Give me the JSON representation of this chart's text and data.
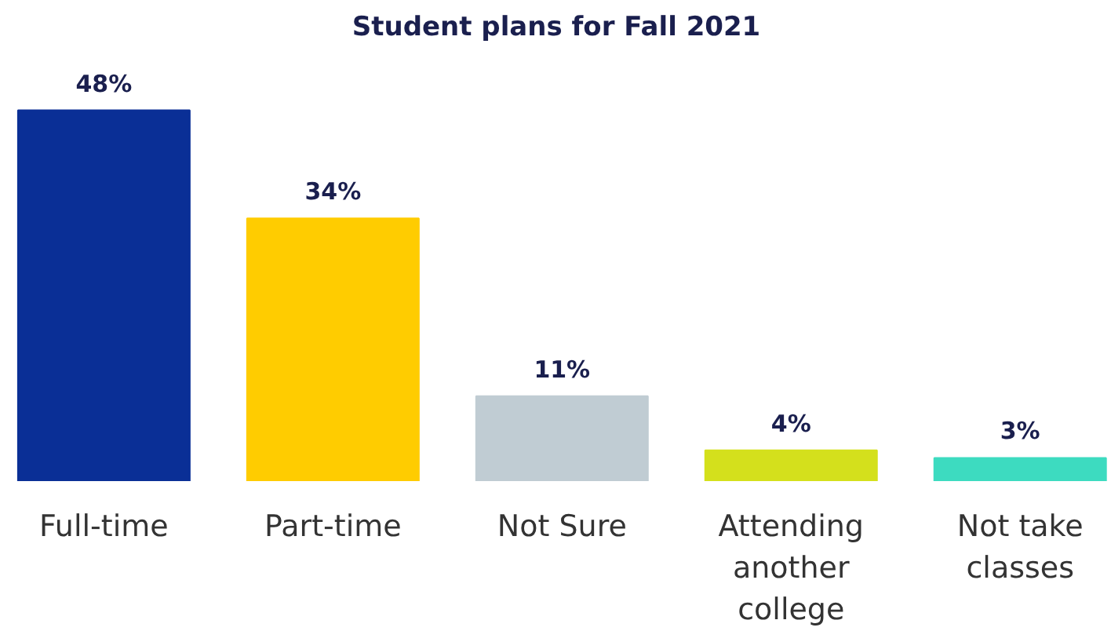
{
  "chart_data": {
    "type": "bar",
    "title": "Student plans for Fall 2021",
    "categories": [
      "Full-time",
      "Part-time",
      "Not Sure",
      "Attending another college",
      "Not take classes"
    ],
    "values": [
      48,
      34,
      11,
      4,
      3
    ],
    "colors": [
      "#0a2f96",
      "#ffcc00",
      "#c0ccd3",
      "#d4e01c",
      "#3ddbc0"
    ],
    "value_labels": [
      "48%",
      "34%",
      "11%",
      "4%",
      "3%"
    ]
  }
}
